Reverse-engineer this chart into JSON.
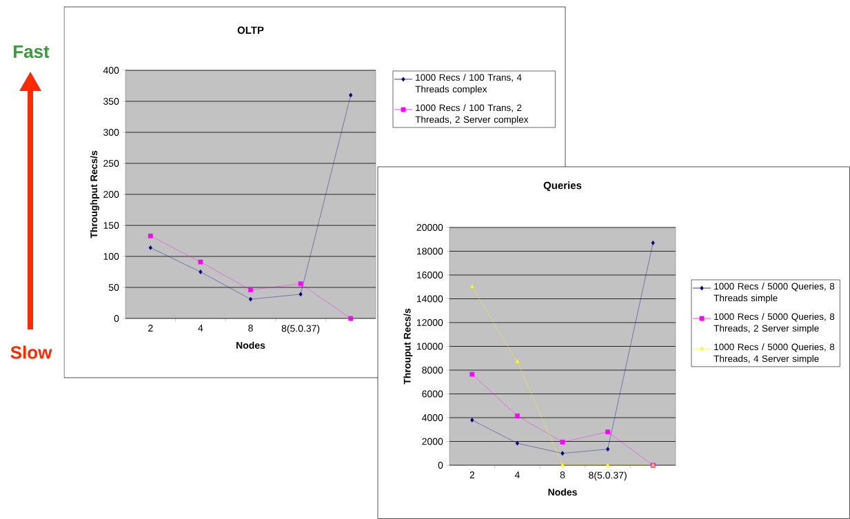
{
  "chart_data": [
    {
      "type": "line",
      "title": "OLTP",
      "xlabel": "Nodes",
      "ylabel": "Throughput Recs/s",
      "categories": [
        "2",
        "4",
        "8",
        "8(5.0.37)",
        null
      ],
      "series": [
        {
          "name": "1000 Recs / 100 Trans, 4 Threads complex",
          "color": "#000080",
          "marker": "diamond",
          "values": [
            114,
            75,
            31,
            39,
            360
          ]
        },
        {
          "name": "1000 Recs / 100 Trans, 2 Threads, 2 Server complex",
          "color": "#ff00ff",
          "marker": "square",
          "values": [
            133,
            91,
            46,
            56,
            0
          ]
        }
      ],
      "ylim": [
        0,
        400
      ],
      "yticks": [
        0,
        50,
        100,
        150,
        200,
        250,
        300,
        350,
        400
      ],
      "grid": "y",
      "legend": "top right",
      "annotations": [
        "Fast",
        "Slow"
      ]
    },
    {
      "type": "line",
      "title": "Queries",
      "xlabel": "Nodes",
      "ylabel": "Throuput Recs/s",
      "categories": [
        "2",
        "4",
        "8",
        "8(5.0.37)",
        null
      ],
      "series": [
        {
          "name": "1000 Recs / 5000 Queries, 8 Threads simple",
          "color": "#000080",
          "marker": "diamond",
          "values": [
            3800,
            1850,
            1000,
            1350,
            18700
          ]
        },
        {
          "name": "1000 Recs / 5000 Queries, 8 Threads, 2 Server simple",
          "color": "#ff00ff",
          "marker": "square",
          "values": [
            7650,
            4150,
            1950,
            2800,
            0
          ]
        },
        {
          "name": "1000 Recs / 5000 Queries, 8 Threads, 4 Server simple",
          "color": "#ffff00",
          "marker": "triangle",
          "values": [
            15000,
            8700,
            0,
            0,
            0
          ]
        }
      ],
      "ylim": [
        0,
        20000
      ],
      "yticks": [
        0,
        2000,
        4000,
        6000,
        8000,
        10000,
        12000,
        14000,
        16000,
        18000,
        20000
      ],
      "grid": "y",
      "legend": "right"
    }
  ]
}
